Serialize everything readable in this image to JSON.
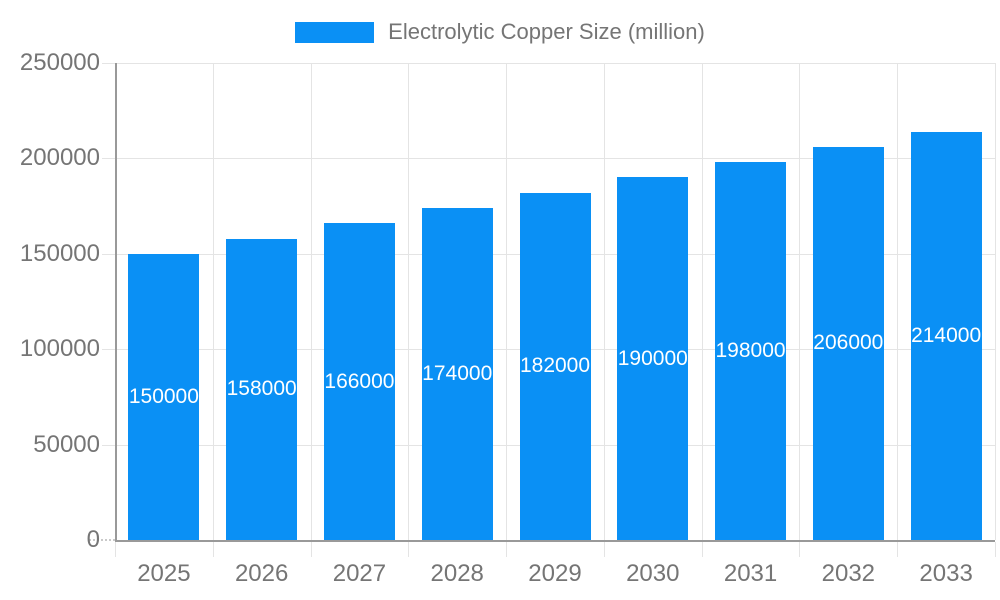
{
  "chart_data": {
    "type": "bar",
    "title": "Electrolytic Copper Size (million)",
    "categories": [
      "2025",
      "2026",
      "2027",
      "2028",
      "2029",
      "2030",
      "2031",
      "2032",
      "2033"
    ],
    "values": [
      150000,
      158000,
      166000,
      174000,
      182000,
      190000,
      198000,
      206000,
      214000
    ],
    "series": [
      {
        "name": "Electrolytic Copper Size (million)",
        "values": [
          150000,
          158000,
          166000,
          174000,
          182000,
          190000,
          198000,
          206000,
          214000
        ]
      }
    ],
    "xlabel": "",
    "ylabel": "",
    "ylim": [
      0,
      250000
    ],
    "y_ticks": [
      0,
      50000,
      100000,
      150000,
      200000,
      250000
    ],
    "y_tick_labels": [
      "0",
      "50000",
      "100000",
      "150000",
      "200000",
      "250000"
    ],
    "grid": true,
    "legend_position": "top",
    "data_labels_visible": true,
    "colors": {
      "bar": "#0A90F5",
      "bar_label_text": "#ffffff",
      "axis_text": "#757575",
      "axis_line": "#999999",
      "gridline": "#e4e4e4"
    }
  }
}
